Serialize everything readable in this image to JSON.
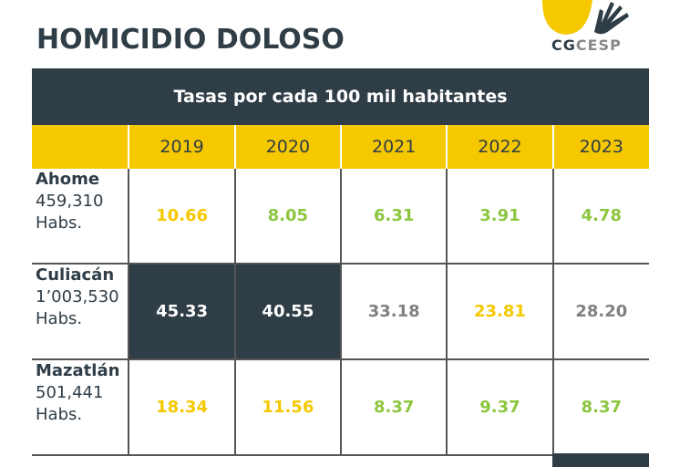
{
  "title": "HOMICIDIO DOLOSO",
  "logo": {
    "text_a": "CG",
    "text_b": "CESP"
  },
  "table": {
    "caption": "Tasas por cada 100 mil habitantes",
    "years": [
      "2019",
      "2020",
      "2021",
      "2022",
      "2023"
    ],
    "rows": [
      {
        "city": "Ahome",
        "population": "459,310",
        "unit": "Habs.",
        "values": [
          "10.66",
          "8.05",
          "6.31",
          "3.91",
          "4.78"
        ]
      },
      {
        "city": "Culiacán",
        "population": "1’003,530",
        "unit": "Habs.",
        "values": [
          "45.33",
          "40.55",
          "33.18",
          "23.81",
          "28.20"
        ]
      },
      {
        "city": "Mazatlán",
        "population": "501,441",
        "unit": "Habs.",
        "values": [
          "18.34",
          "11.56",
          "8.37",
          "9.37",
          "8.37"
        ]
      }
    ]
  },
  "colors": {
    "dark": "#2f3d47",
    "yellow": "#f5c800",
    "green": "#8cc63f",
    "gray": "#808080"
  }
}
